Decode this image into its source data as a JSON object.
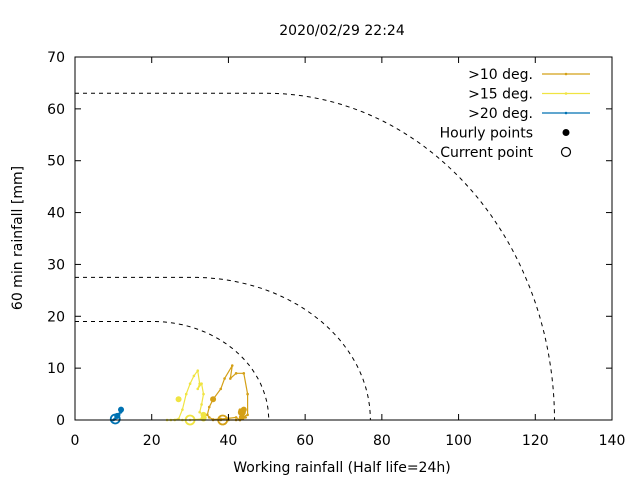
{
  "chart_data": {
    "type": "line",
    "title": "2020/02/29 22:24",
    "xlabel": "Working rainfall (Half life=24h)",
    "ylabel": "60 min rainfall [mm]",
    "xlim": [
      0,
      140
    ],
    "ylim": [
      0,
      70
    ],
    "xticks": [
      0,
      20,
      40,
      60,
      80,
      100,
      120,
      140
    ],
    "yticks": [
      0,
      10,
      20,
      30,
      40,
      50,
      60,
      70
    ],
    "grid": false,
    "legend_position": "top-right",
    "legend": [
      {
        "label": ">10 deg.",
        "kind": "line",
        "color": "#d4a017"
      },
      {
        "label": ">15 deg.",
        "kind": "line",
        "color": "#f0e442"
      },
      {
        "label": ">20 deg.",
        "kind": "line",
        "color": "#0072b2"
      },
      {
        "label": "Hourly points",
        "kind": "filled-circle",
        "color": "#000000"
      },
      {
        "label": "Current point",
        "kind": "open-circle",
        "color": "#000000"
      }
    ],
    "thresholds": [
      {
        "name": ">10 deg.",
        "flat_y": 63,
        "x_end": 125,
        "style": "dashed",
        "color": "#000000"
      },
      {
        "name": ">15 deg.",
        "flat_y": 27.5,
        "x_end": 77,
        "style": "dashed",
        "color": "#000000"
      },
      {
        "name": ">20 deg.",
        "flat_y": 19,
        "x_end": 50.5,
        "style": "dashed",
        "color": "#000000"
      }
    ],
    "series": [
      {
        "name": ">10 deg.",
        "color": "#d4a017",
        "x": [
          44,
          43.5,
          43,
          43.5,
          44.5,
          43,
          42,
          40,
          38,
          36,
          35,
          34.5,
          35,
          36,
          38,
          39,
          41,
          40.5,
          42,
          44,
          45,
          45,
          43.5,
          43,
          42,
          40,
          38,
          36
        ],
        "y": [
          0.5,
          1.5,
          2,
          0.5,
          0.5,
          0,
          0.5,
          0.3,
          0.2,
          0.1,
          0.5,
          1,
          2.5,
          4,
          6,
          8,
          10.5,
          8,
          9,
          9,
          5,
          1,
          0.5,
          0,
          0,
          0,
          0,
          0
        ],
        "hourly_points": [
          {
            "x": 36,
            "y": 4,
            "r": 3
          },
          {
            "x": 43.5,
            "y": 1.5,
            "r": 4
          },
          {
            "x": 43.5,
            "y": 0.5,
            "r": 3
          },
          {
            "x": 44,
            "y": 2,
            "r": 3
          }
        ],
        "current": {
          "x": 38.5,
          "y": 0
        }
      },
      {
        "name": ">15 deg.",
        "color": "#f0e442",
        "x": [
          24,
          25,
          27,
          28,
          29,
          30,
          31,
          32,
          32.5,
          32,
          33,
          33.5,
          33,
          32.5,
          33.5,
          34,
          33,
          30,
          28,
          26
        ],
        "y": [
          0,
          0,
          0.2,
          2,
          5,
          7,
          8.5,
          9.5,
          7,
          6,
          7,
          5,
          3,
          1.5,
          1,
          0.5,
          0.2,
          0,
          0,
          0
        ],
        "hourly_points": [
          {
            "x": 27,
            "y": 4,
            "r": 3
          },
          {
            "x": 33.5,
            "y": 1,
            "r": 3
          },
          {
            "x": 33.5,
            "y": 0.3,
            "r": 3
          }
        ],
        "current": {
          "x": 30,
          "y": 0
        }
      },
      {
        "name": ">20 deg.",
        "color": "#0072b2",
        "x": [
          10,
          10.5,
          11,
          11.5,
          12,
          12,
          11.5,
          11,
          10.5,
          10.2
        ],
        "y": [
          0,
          0.2,
          0.5,
          1,
          1.5,
          2,
          1.2,
          0.8,
          0.3,
          0.1
        ],
        "hourly_points": [
          {
            "x": 12,
            "y": 2,
            "r": 3
          },
          {
            "x": 11,
            "y": 0.8,
            "r": 3
          }
        ],
        "current": {
          "x": 10.5,
          "y": 0.2
        }
      }
    ]
  }
}
